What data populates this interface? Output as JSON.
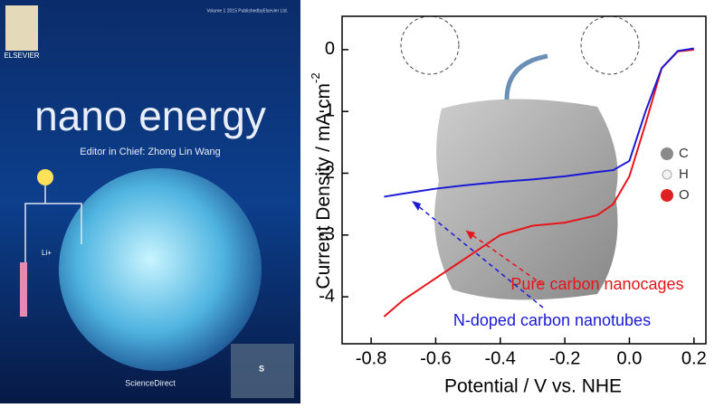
{
  "cover": {
    "publisher": "ELSEVIER",
    "volume": "Volume 1 2015 PublishedbyElsevier Ltd.",
    "journal": "nano energy",
    "editor": "Editor in Chief: Zhong Lin Wang",
    "footer": "ScienceDirect",
    "ion": "Li+",
    "element": "S"
  },
  "chart_data": {
    "type": "line",
    "x_label": "Potential / V vs. NHE",
    "y_label": "Current Density / mA cm",
    "y_label_sup": "-2",
    "x": [
      -0.76,
      -0.7,
      -0.6,
      -0.5,
      -0.4,
      -0.3,
      -0.2,
      -0.1,
      -0.05,
      0,
      0.05,
      0.1,
      0.15,
      0.2
    ],
    "series": [
      {
        "name": "Pure carbon nanocages",
        "color": "#e8141b",
        "values": [
          -4.32,
          -4.05,
          -3.7,
          -3.35,
          -3.0,
          -2.85,
          -2.8,
          -2.68,
          -2.5,
          -2.05,
          -1.2,
          -0.3,
          -0.03,
          0.0
        ]
      },
      {
        "name": "N-doped carbon nanotubes",
        "color": "#1a1ad6",
        "values": [
          -2.38,
          -2.33,
          -2.25,
          -2.19,
          -2.14,
          -2.1,
          -2.05,
          -1.98,
          -1.95,
          -1.8,
          -1.0,
          -0.3,
          -0.02,
          0.02
        ]
      }
    ],
    "atoms": [
      "C",
      "H",
      "O"
    ],
    "xlim": [
      -0.89,
      0.237
    ],
    "ylim": [
      -4.76,
      0.54
    ],
    "xticks": [
      -0.8,
      -0.6,
      -0.4,
      -0.2,
      {
        "value": 0,
        "label": "0.0"
      },
      0.2
    ],
    "yticks": [
      0,
      -1,
      -2,
      -3,
      -4
    ]
  }
}
